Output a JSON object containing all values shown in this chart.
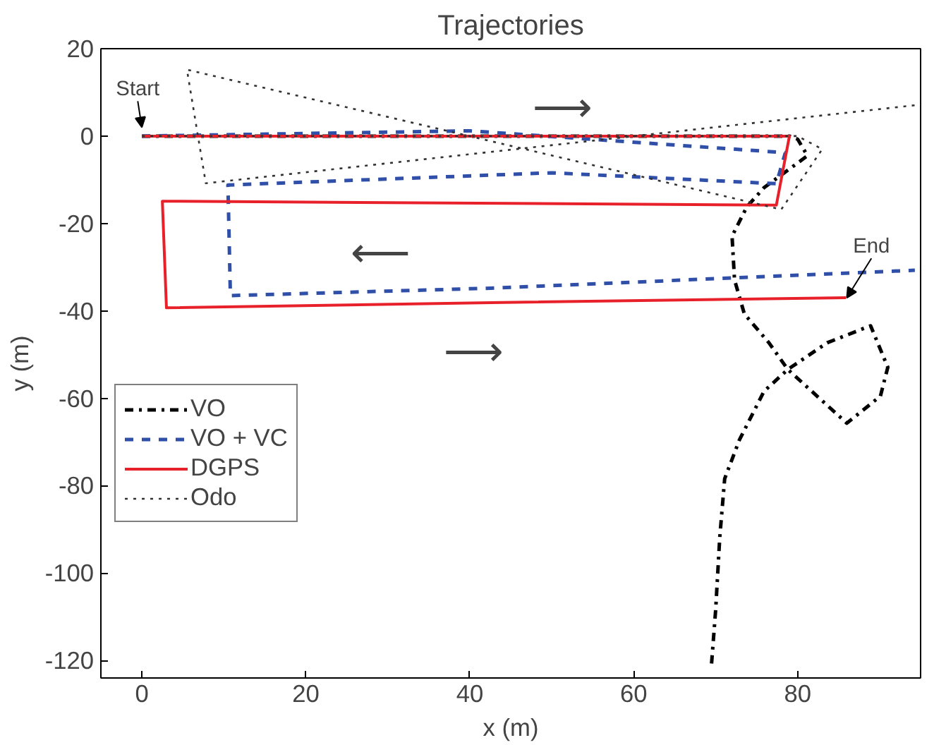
{
  "chart_data": {
    "type": "line",
    "title": "Trajectories",
    "xlabel": "x (m)",
    "ylabel": "y (m)",
    "xlim": [
      -5,
      95
    ],
    "ylim": [
      -124,
      20
    ],
    "xticks": [
      0,
      20,
      40,
      60,
      80
    ],
    "yticks": [
      -120,
      -100,
      -80,
      -60,
      -40,
      -20,
      0,
      20
    ],
    "grid": false,
    "legend": "bottom left",
    "marker": "none",
    "series": [
      {
        "name": "VO",
        "color": "#000000",
        "line_style": "dashdot",
        "x": [
          0,
          40,
          79,
          80,
          81.2,
          75.9,
          73.8,
          72,
          72.3,
          73.5,
          76.5,
          78.8,
          86,
          90.1,
          91,
          88.9,
          83.6,
          78.8,
          75.9,
          72.9,
          71.1,
          70.5,
          70,
          69.5
        ],
        "values": [
          0,
          0,
          0,
          -0.7,
          -4.5,
          -11.8,
          -16.2,
          -22.9,
          -32.9,
          -40.7,
          -47.3,
          -53.4,
          -65.7,
          -59.5,
          -52.9,
          -43.4,
          -47.3,
          -53.4,
          -58.4,
          -69.5,
          -78.4,
          -91.8,
          -108.4,
          -120.7
        ]
      },
      {
        "name": "VO + VC",
        "color": "#2f4fa8",
        "line_style": "dashed",
        "x": [
          0,
          40,
          78.5,
          77.4,
          50,
          10.5,
          10.8,
          42.6,
          94.3
        ],
        "values": [
          0,
          1.2,
          -3.8,
          -10.9,
          -8.4,
          -11.2,
          -36.5,
          -34.8,
          -30.7
        ]
      },
      {
        "name": "DGPS",
        "color": "#e8202a",
        "line_style": "solid",
        "x": [
          0,
          79,
          77.4,
          2.5,
          3,
          42.6,
          85.9
        ],
        "values": [
          0,
          0,
          -15.8,
          -14.9,
          -39.3,
          -38.1,
          -37
        ]
      },
      {
        "name": "Odo",
        "color": "#333333",
        "line_style": "dotted",
        "x": [
          0,
          80,
          83,
          78,
          5.5,
          7.8,
          95
        ],
        "values": [
          0,
          0,
          -3,
          -16.8,
          15.2,
          -10.8,
          7.2
        ]
      }
    ],
    "annotations": [
      {
        "text": "Start",
        "x": 0,
        "y": 2
      },
      {
        "text": "End",
        "x": 86,
        "y": -37
      },
      "⟶",
      "⟵",
      "⟶"
    ]
  }
}
